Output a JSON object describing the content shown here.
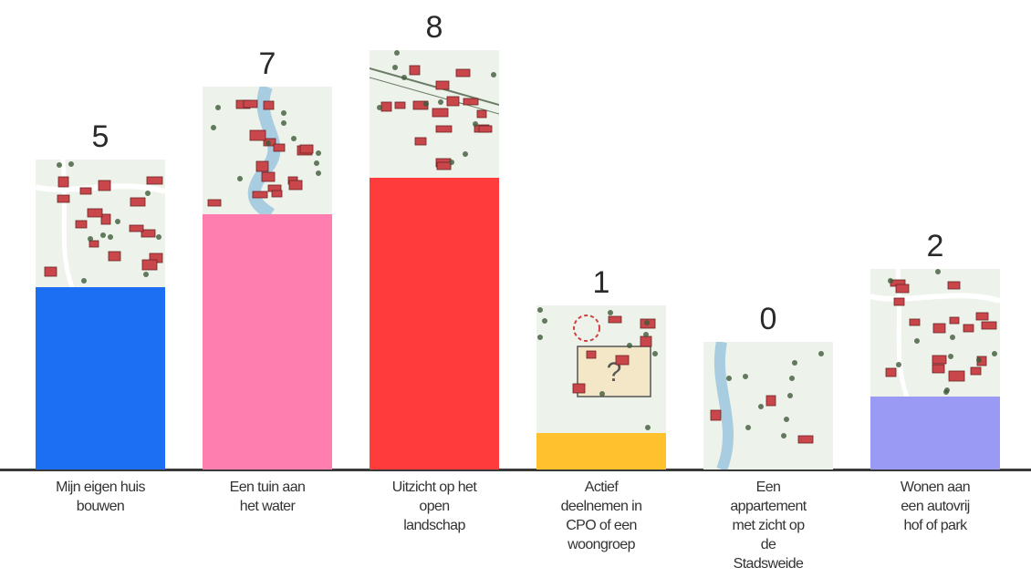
{
  "chart_data": {
    "type": "bar",
    "title": "",
    "xlabel": "",
    "ylabel": "",
    "ylim": [
      0,
      8
    ],
    "grid": false,
    "categories": [
      "Mijn eigen huis bouwen",
      "Een tuin aan het water",
      "Uitzicht op het open landschap",
      "Actief deelnemen in CPO of een woongroep",
      "Een appartement met zicht op de Stadsweide",
      "Wonen aan een autovrij hof of park"
    ],
    "values": [
      5,
      7,
      8,
      1,
      0,
      2
    ],
    "value_labels": [
      "5",
      "7",
      "8",
      "1",
      "0",
      "2"
    ],
    "label_lines": [
      [
        "Mijn eigen huis",
        "bouwen"
      ],
      [
        "Een tuin aan",
        "het water"
      ],
      [
        "Uitzicht op het",
        "open",
        "landschap"
      ],
      [
        "Actief",
        "deelnemen in",
        "CPO of een",
        "woongroep"
      ],
      [
        "Een",
        "appartement",
        "met zicht op",
        "de",
        "Stadsweide"
      ],
      [
        "Wonen aan",
        "een autovrij",
        "hof of park"
      ]
    ],
    "colors": [
      "#1c6ef2",
      "#ff7eb0",
      "#ff3b3b",
      "#ffc22e",
      "#ffffff",
      "#9a9af5"
    ],
    "tile_icons": [
      "neighbourhood-map-icon",
      "canal-houses-map-icon",
      "open-landscape-map-icon",
      "cpo-courtyard-map-icon",
      "apartment-riverside-map-icon",
      "car-free-court-map-icon"
    ]
  }
}
